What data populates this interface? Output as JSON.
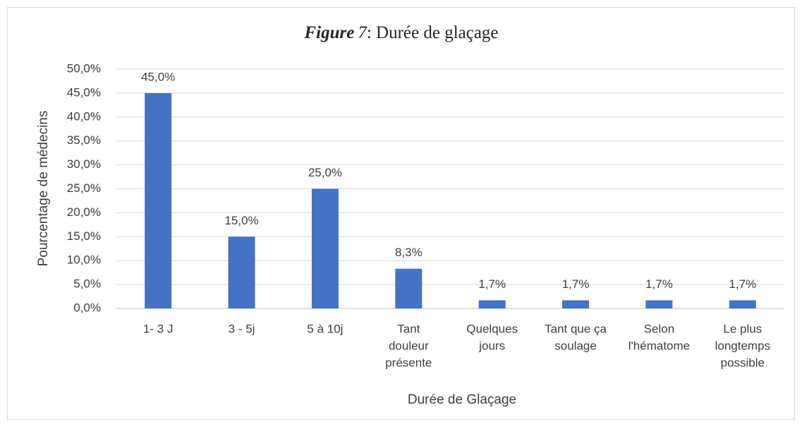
{
  "chart_data": {
    "type": "bar",
    "title": {
      "label": "Figure",
      "number": "7",
      "text": ": Durée de glaçage"
    },
    "x_label": "Durée de Glaçage",
    "y_label": "Pourcentage de médecins",
    "categories": [
      [
        "1- 3 J"
      ],
      [
        "3 - 5j"
      ],
      [
        "5 à 10j"
      ],
      [
        "Tant",
        "douleur",
        "présente"
      ],
      [
        "Quelques",
        "jours"
      ],
      [
        "Tant que ça",
        "soulage"
      ],
      [
        "Selon",
        "l'hématome"
      ],
      [
        "Le plus",
        "longtemps",
        "possible"
      ]
    ],
    "values": [
      45,
      15,
      25,
      8.3,
      1.7,
      1.7,
      1.7,
      1.7
    ],
    "value_labels": [
      "45,0%",
      "15,0%",
      "25,0%",
      "8,3%",
      "1,7%",
      "1,7%",
      "1,7%",
      "1,7%"
    ],
    "color": "#4472c4",
    "ylim": [
      0,
      50
    ],
    "yticks": [
      {
        "value": 0,
        "label": "0,0%"
      },
      {
        "value": 5,
        "label": "5,0%"
      },
      {
        "value": 10,
        "label": "10,0%"
      },
      {
        "value": 15,
        "label": "15,0%"
      },
      {
        "value": 20,
        "label": "20,0%"
      },
      {
        "value": 25,
        "label": "25,0%"
      },
      {
        "value": 30,
        "label": "30,0%"
      },
      {
        "value": 35,
        "label": "35,0%"
      },
      {
        "value": 40,
        "label": "40,0%"
      },
      {
        "value": 45,
        "label": "45,0%"
      },
      {
        "value": 50,
        "label": "50,0%"
      }
    ],
    "grid": true
  }
}
